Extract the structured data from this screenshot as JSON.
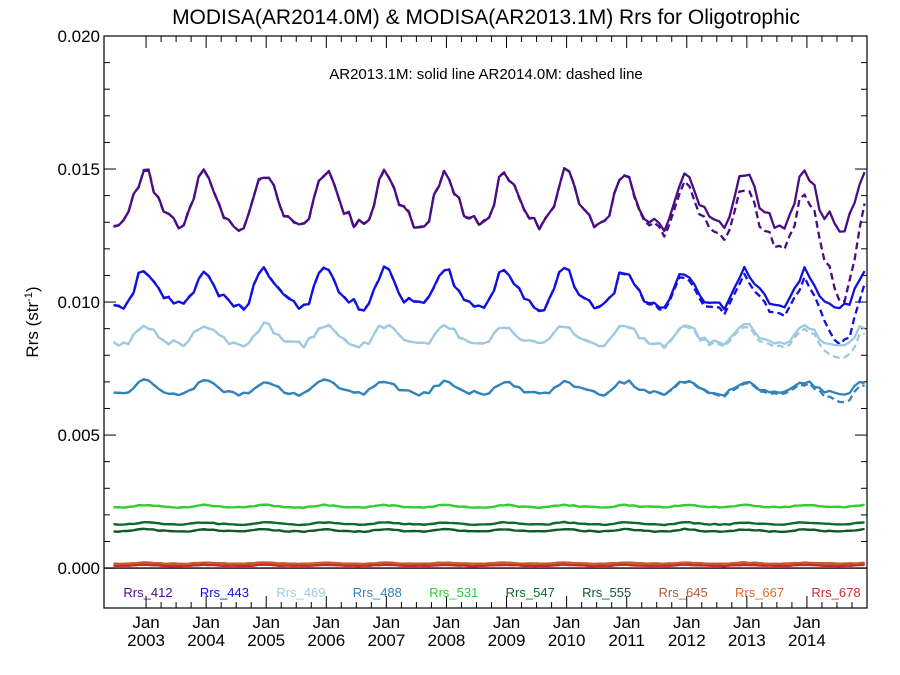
{
  "chart_data": {
    "type": "line",
    "title": "MODISA(AR2014.0M) & MODISA(AR2013.1M)  Rrs for Oligotrophic",
    "annotation": "AR2013.1M: solid line   AR2014.0M: dashed line",
    "ylabel_main": "Rrs (str",
    "ylabel_sup": "-1",
    "ylabel_close": ")",
    "ylim": [
      -0.0015,
      0.02
    ],
    "yticks": [
      0.0,
      0.005,
      0.01,
      0.015,
      0.02
    ],
    "ytick_labels": [
      "0.000",
      "0.005",
      "0.010",
      "0.015",
      "0.020"
    ],
    "xlim": [
      2002.3,
      2015.0
    ],
    "xtick_years": [
      2003,
      2004,
      2005,
      2006,
      2007,
      2008,
      2009,
      2010,
      2011,
      2012,
      2013,
      2014
    ],
    "xtick_month_label": "Jan",
    "xtick_year_labels": [
      "2003",
      "2004",
      "2005",
      "2006",
      "2007",
      "2008",
      "2009",
      "2010",
      "2011",
      "2012",
      "2013",
      "2014"
    ],
    "zero_line": true,
    "grid": false,
    "legend_position": "bottom",
    "series": [
      {
        "name": "Rrs_412",
        "color": "#4b0d85",
        "base": 0.0137,
        "amp": 0.00095,
        "noise": 0.00025,
        "drift_solid": 0.0,
        "drift_dashed": -0.0012,
        "dip_dashed": 0.0016
      },
      {
        "name": "Rrs_443",
        "color": "#1010e0",
        "base": 0.0104,
        "amp": 0.00065,
        "noise": 0.00018,
        "drift_solid": 0.0,
        "drift_dashed": -0.0005,
        "dip_dashed": 0.0009
      },
      {
        "name": "Rrs_469",
        "color": "#9ecae1",
        "base": 0.0087,
        "amp": 0.00035,
        "noise": 0.00012,
        "drift_solid": 0.0,
        "drift_dashed": -0.0002,
        "dip_dashed": 0.0003
      },
      {
        "name": "Rrs_488",
        "color": "#3182bd",
        "base": 0.00675,
        "amp": 0.00022,
        "noise": 8e-05,
        "drift_solid": 0.0,
        "drift_dashed": -0.0001,
        "dip_dashed": 0.0002
      },
      {
        "name": "Rrs_531",
        "color": "#33cc33",
        "base": 0.00232,
        "amp": 4e-05,
        "noise": 2e-05,
        "drift_solid": 0.0,
        "drift_dashed": 0.0,
        "dip_dashed": 0.0
      },
      {
        "name": "Rrs_547",
        "color": "#0a6b2a",
        "base": 0.00167,
        "amp": 4e-05,
        "noise": 2e-05,
        "drift_solid": 0.0,
        "drift_dashed": 0.0,
        "dip_dashed": 0.0
      },
      {
        "name": "Rrs_555",
        "color": "#0d5c2a",
        "base": 0.00141,
        "amp": 4e-05,
        "noise": 2e-05,
        "drift_solid": 0.0,
        "drift_dashed": 0.0,
        "dip_dashed": 0.0
      },
      {
        "name": "Rrs_645",
        "color": "#b85a2e",
        "base": 0.00018,
        "amp": 2e-05,
        "noise": 1e-05,
        "drift_solid": 0.0,
        "drift_dashed": 0.0,
        "dip_dashed": 0.0
      },
      {
        "name": "Rrs_667",
        "color": "#e0662a",
        "base": 0.00013,
        "amp": 2e-05,
        "noise": 1e-05,
        "drift_solid": 0.0,
        "drift_dashed": 0.0,
        "dip_dashed": 0.0
      },
      {
        "name": "Rrs_678",
        "color": "#cc2a2a",
        "base": 0.0001,
        "amp": 2e-05,
        "noise": 1e-05,
        "drift_solid": 0.0,
        "drift_dashed": 0.0,
        "dip_dashed": 0.0
      }
    ]
  }
}
